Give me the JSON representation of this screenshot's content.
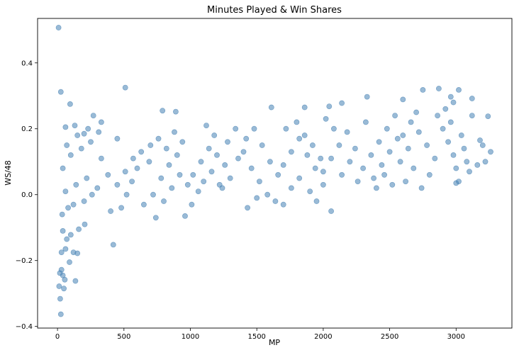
{
  "chart_data": {
    "type": "scatter",
    "title": "Minutes Played & Win Shares",
    "xlabel": "MP",
    "ylabel": "WS/48",
    "xlim": [
      -150,
      3420
    ],
    "ylim": [
      -0.405,
      0.535
    ],
    "x_ticks": [
      0,
      500,
      1000,
      1500,
      2000,
      2500,
      3000
    ],
    "y_ticks": [
      -0.4,
      -0.2,
      0.0,
      0.2,
      0.4
    ],
    "x_tick_labels": [
      "0",
      "500",
      "1000",
      "1500",
      "2000",
      "2500",
      "3000"
    ],
    "y_tick_labels": [
      "−0.4",
      "−0.2",
      "0.0",
      "0.2",
      "0.4"
    ],
    "grid": false,
    "legend": "none",
    "marker_color": "#4682b4",
    "marker_alpha": 0.55,
    "series": [
      {
        "values": [
          [
            8,
            0.507
          ],
          [
            25,
            0.312
          ],
          [
            95,
            0.275
          ],
          [
            510,
            0.325
          ],
          [
            2870,
            0.322
          ],
          [
            3020,
            0.318
          ],
          [
            2330,
            0.297
          ],
          [
            2750,
            0.318
          ],
          [
            3120,
            0.292
          ],
          [
            2960,
            0.297
          ],
          [
            2140,
            0.278
          ],
          [
            1610,
            0.265
          ],
          [
            2045,
            0.268
          ],
          [
            2600,
            0.289
          ],
          [
            3240,
            0.238
          ],
          [
            18,
            -0.238
          ],
          [
            30,
            -0.228
          ],
          [
            12,
            -0.278
          ],
          [
            40,
            -0.245
          ],
          [
            55,
            -0.258
          ],
          [
            20,
            -0.316
          ],
          [
            25,
            -0.363
          ],
          [
            135,
            -0.262
          ],
          [
            48,
            -0.285
          ],
          [
            420,
            -0.152
          ],
          [
            30,
            -0.175
          ],
          [
            60,
            -0.165
          ],
          [
            90,
            -0.205
          ],
          [
            120,
            -0.175
          ],
          [
            150,
            -0.178
          ],
          [
            70,
            -0.135
          ],
          [
            100,
            -0.122
          ],
          [
            40,
            -0.11
          ],
          [
            160,
            -0.105
          ],
          [
            205,
            -0.09
          ],
          [
            35,
            -0.06
          ],
          [
            80,
            -0.04
          ],
          [
            120,
            -0.03
          ],
          [
            200,
            -0.02
          ],
          [
            260,
            0.0
          ],
          [
            60,
            0.01
          ],
          [
            140,
            0.03
          ],
          [
            220,
            0.05
          ],
          [
            300,
            0.02
          ],
          [
            380,
            0.06
          ],
          [
            40,
            0.08
          ],
          [
            100,
            0.12
          ],
          [
            180,
            0.14
          ],
          [
            250,
            0.16
          ],
          [
            330,
            0.11
          ],
          [
            70,
            0.15
          ],
          [
            150,
            0.18
          ],
          [
            230,
            0.2
          ],
          [
            310,
            0.19
          ],
          [
            450,
            0.17
          ],
          [
            60,
            0.205
          ],
          [
            130,
            0.21
          ],
          [
            200,
            0.185
          ],
          [
            270,
            0.24
          ],
          [
            330,
            0.22
          ],
          [
            400,
            -0.05
          ],
          [
            480,
            -0.04
          ],
          [
            520,
            0.0
          ],
          [
            560,
            0.04
          ],
          [
            600,
            0.08
          ],
          [
            450,
            0.03
          ],
          [
            510,
            0.07
          ],
          [
            570,
            0.11
          ],
          [
            630,
            0.13
          ],
          [
            690,
            0.1
          ],
          [
            650,
            -0.03
          ],
          [
            720,
            0.0
          ],
          [
            780,
            0.05
          ],
          [
            840,
            0.09
          ],
          [
            900,
            0.12
          ],
          [
            700,
            0.15
          ],
          [
            760,
            0.17
          ],
          [
            820,
            0.14
          ],
          [
            880,
            0.19
          ],
          [
            940,
            0.16
          ],
          [
            740,
            -0.07
          ],
          [
            800,
            -0.02
          ],
          [
            860,
            0.02
          ],
          [
            920,
            0.06
          ],
          [
            980,
            0.03
          ],
          [
            790,
            0.255
          ],
          [
            890,
            0.252
          ],
          [
            960,
            -0.065
          ],
          [
            1010,
            -0.03
          ],
          [
            1060,
            0.01
          ],
          [
            1020,
            0.06
          ],
          [
            1080,
            0.1
          ],
          [
            1140,
            0.14
          ],
          [
            1200,
            0.12
          ],
          [
            1260,
            0.09
          ],
          [
            1100,
            0.04
          ],
          [
            1160,
            0.07
          ],
          [
            1220,
            0.03
          ],
          [
            1280,
            0.16
          ],
          [
            1340,
            0.2
          ],
          [
            1120,
            0.21
          ],
          [
            1180,
            0.18
          ],
          [
            1240,
            0.02
          ],
          [
            1300,
            0.05
          ],
          [
            1360,
            0.11
          ],
          [
            1400,
            0.13
          ],
          [
            1460,
            0.08
          ],
          [
            1520,
            0.04
          ],
          [
            1580,
            0.0
          ],
          [
            1640,
            -0.02
          ],
          [
            1420,
            0.17
          ],
          [
            1480,
            0.2
          ],
          [
            1540,
            0.15
          ],
          [
            1600,
            0.1
          ],
          [
            1660,
            0.06
          ],
          [
            1430,
            -0.04
          ],
          [
            1500,
            -0.01
          ],
          [
            1700,
            -0.03
          ],
          [
            1760,
            0.02
          ],
          [
            1820,
            0.05
          ],
          [
            1700,
            0.09
          ],
          [
            1760,
            0.13
          ],
          [
            1820,
            0.17
          ],
          [
            1880,
            0.12
          ],
          [
            1940,
            0.08
          ],
          [
            1720,
            0.2
          ],
          [
            1800,
            0.22
          ],
          [
            1860,
            0.18
          ],
          [
            1920,
            0.15
          ],
          [
            1980,
            0.11
          ],
          [
            1860,
            0.265
          ],
          [
            1900,
            0.01
          ],
          [
            1950,
            -0.02
          ],
          [
            2000,
            0.03
          ],
          [
            2060,
            -0.05
          ],
          [
            2000,
            0.07
          ],
          [
            2060,
            0.11
          ],
          [
            2120,
            0.15
          ],
          [
            2180,
            0.19
          ],
          [
            2240,
            0.14
          ],
          [
            2020,
            0.23
          ],
          [
            2080,
            0.2
          ],
          [
            2140,
            0.06
          ],
          [
            2200,
            0.1
          ],
          [
            2260,
            0.04
          ],
          [
            2300,
            0.08
          ],
          [
            2360,
            0.12
          ],
          [
            2420,
            0.16
          ],
          [
            2480,
            0.2
          ],
          [
            2540,
            0.24
          ],
          [
            2320,
            0.22
          ],
          [
            2380,
            0.05
          ],
          [
            2440,
            0.09
          ],
          [
            2500,
            0.13
          ],
          [
            2560,
            0.17
          ],
          [
            2400,
            0.02
          ],
          [
            2460,
            0.06
          ],
          [
            2520,
            0.03
          ],
          [
            2580,
            0.1
          ],
          [
            2640,
            0.14
          ],
          [
            2600,
            0.18
          ],
          [
            2660,
            0.22
          ],
          [
            2720,
            0.19
          ],
          [
            2780,
            0.15
          ],
          [
            2840,
            0.11
          ],
          [
            2620,
            0.04
          ],
          [
            2680,
            0.08
          ],
          [
            2740,
            0.02
          ],
          [
            2800,
            0.06
          ],
          [
            2860,
            0.24
          ],
          [
            2900,
            0.2
          ],
          [
            2940,
            0.16
          ],
          [
            2980,
            0.12
          ],
          [
            3000,
            0.08
          ],
          [
            3020,
            0.04
          ],
          [
            2920,
            0.26
          ],
          [
            2960,
            0.22
          ],
          [
            3040,
            0.18
          ],
          [
            3060,
            0.14
          ],
          [
            3080,
            0.1
          ],
          [
            3000,
            0.035
          ],
          [
            3100,
            0.07
          ],
          [
            3120,
            0.24
          ],
          [
            3160,
            0.09
          ],
          [
            3200,
            0.15
          ],
          [
            3180,
            0.165
          ],
          [
            3260,
            0.13
          ],
          [
            3220,
            0.1
          ],
          [
            2980,
            0.28
          ],
          [
            2700,
            0.25
          ]
        ]
      }
    ]
  }
}
